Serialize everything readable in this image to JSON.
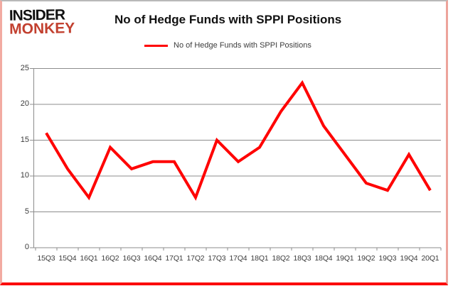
{
  "logo": {
    "line1": "INSIDER",
    "line2": "MONKEY",
    "line1_color": "#111111",
    "line2_color": "#c2402f"
  },
  "title": "No of Hedge Funds with SPPI Positions",
  "legend": {
    "label": "No of Hedge Funds with SPPI Positions",
    "line_color": "#ff0000"
  },
  "chart_data": {
    "type": "line",
    "title": "No of Hedge Funds with SPPI Positions",
    "categories": [
      "15Q3",
      "15Q4",
      "16Q1",
      "16Q2",
      "16Q3",
      "16Q4",
      "17Q1",
      "17Q2",
      "17Q3",
      "17Q4",
      "18Q1",
      "18Q2",
      "18Q3",
      "18Q4",
      "19Q1",
      "19Q2",
      "19Q3",
      "19Q4",
      "20Q1"
    ],
    "series": [
      {
        "name": "No of Hedge Funds with SPPI Positions",
        "color": "#ff0000",
        "values": [
          16,
          11,
          7,
          14,
          11,
          12,
          12,
          7,
          15,
          12,
          14,
          19,
          23,
          17,
          13,
          9,
          8,
          13,
          8
        ]
      }
    ],
    "xlabel": "",
    "ylabel": "",
    "ylim": [
      0,
      25
    ],
    "yticks": [
      0,
      5,
      10,
      15,
      20,
      25
    ],
    "grid": "horizontal",
    "gridline_color": "#8c8c8c",
    "axis_color": "#8c8c8c",
    "tick_label_color": "#3c3c3c",
    "legend_position": "top-center",
    "line_width": 4
  },
  "frame": {
    "top_border_color": "#b9b9b9",
    "side_border_color": "#f2aba2",
    "bottom_border_color": "#fb0300"
  }
}
